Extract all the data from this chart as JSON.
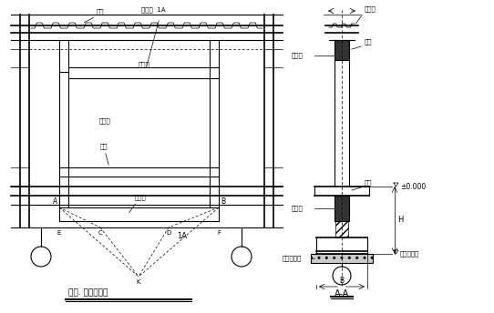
{
  "bg_color": "#ffffff",
  "line_color": "#000000",
  "fig_width": 5.42,
  "fig_height": 3.44,
  "title_left": "图一. 门框梁布置",
  "title_right": "A-A",
  "labels": {
    "quan_liang_left": "圈梁",
    "kong_xin_ban_left": "空心板  1A",
    "men_kuang_liang_top": "门框梁",
    "men_kuang_zhu": "门框柱",
    "di_liang": "地梁",
    "di_ji_liang": "地基梁",
    "point_a": "A",
    "point_b": "B",
    "point_c": "C",
    "point_d": "D",
    "point_e": "E",
    "point_f": "F",
    "point_k": "K",
    "section_1a": "1A",
    "kong_xin_ban_right": "空心板",
    "quan_liang_right": "圈梁",
    "men_kuang_liang_right": "门框梁",
    "di_liang_right": "地梁",
    "di_jiao_liang_right": "地脚梁",
    "hun_ning_tu": "混凝土垫层",
    "pm_zero": "±0.000",
    "ji_chu_biao_gao": "基础底标高",
    "dim_h": "H"
  }
}
